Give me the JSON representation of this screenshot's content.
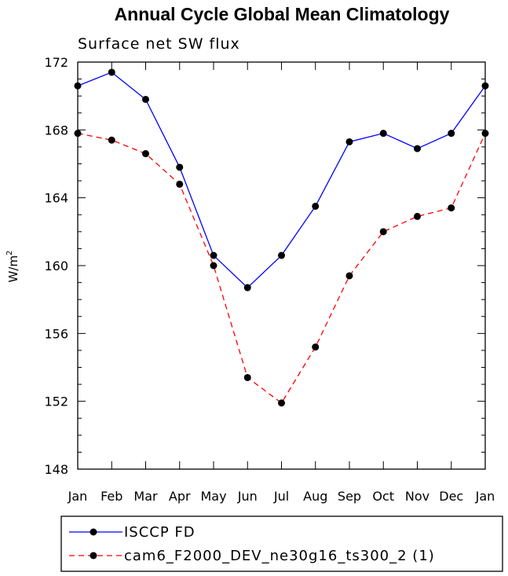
{
  "chart_data": {
    "type": "line",
    "title": "Annual Cycle Global Mean Climatology",
    "subtitle": "Surface net SW flux",
    "xlabel": "",
    "ylabel": "W/m",
    "ylabel_superscript": "2",
    "categories": [
      "Jan",
      "Feb",
      "Mar",
      "Apr",
      "May",
      "Jun",
      "Jul",
      "Aug",
      "Sep",
      "Oct",
      "Nov",
      "Dec",
      "Jan"
    ],
    "ylim": [
      148,
      172
    ],
    "yticks": [
      148,
      152,
      156,
      160,
      164,
      168,
      172
    ],
    "series": [
      {
        "name": "ISCCP FD",
        "color": "#0000ff",
        "dash": "solid",
        "values": [
          170.6,
          171.4,
          169.8,
          165.8,
          160.6,
          158.7,
          160.6,
          163.5,
          167.3,
          167.8,
          166.9,
          167.8,
          170.6
        ]
      },
      {
        "name": "cam6_F2000_DEV_ne30g16_ts300_2 (1)",
        "color": "#ff0000",
        "dash": "dashed",
        "values": [
          167.8,
          167.4,
          166.6,
          164.8,
          160.0,
          153.4,
          151.9,
          155.2,
          159.4,
          162.0,
          162.9,
          163.4,
          167.8
        ]
      }
    ]
  }
}
